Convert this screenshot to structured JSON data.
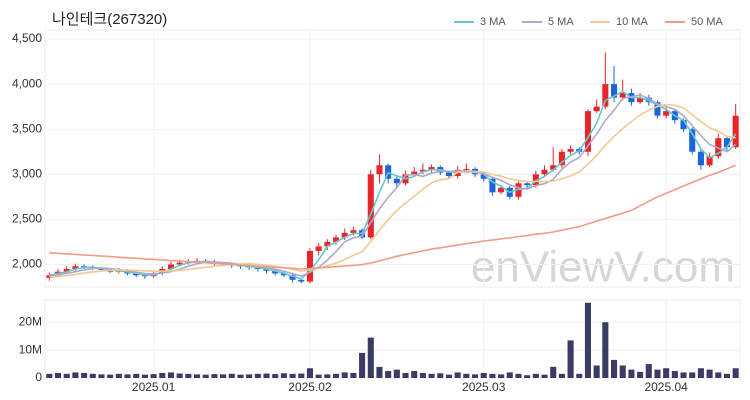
{
  "chart_data": {
    "type": "candlestick",
    "title": "나인테크(267320)",
    "watermark": "enViewV.com",
    "legend": "top-right",
    "grid": true,
    "up_color": "#e8262a",
    "down_color": "#1e64d8",
    "categories": [
      null,
      null,
      null,
      null,
      null,
      null,
      null,
      null,
      null,
      null,
      null,
      null,
      "2025.01",
      null,
      null,
      null,
      null,
      null,
      null,
      null,
      null,
      null,
      null,
      null,
      null,
      null,
      null,
      null,
      null,
      null,
      "2025.02",
      null,
      null,
      null,
      null,
      null,
      null,
      null,
      null,
      null,
      null,
      null,
      null,
      null,
      null,
      null,
      null,
      null,
      null,
      null,
      "2025.03",
      null,
      null,
      null,
      null,
      null,
      null,
      null,
      null,
      null,
      null,
      null,
      null,
      null,
      null,
      null,
      null,
      null,
      null,
      null,
      null,
      "2025.04",
      null,
      null,
      null,
      null,
      null,
      null,
      null,
      null
    ],
    "open": [
      1850,
      1880,
      1920,
      1950,
      1980,
      1970,
      1960,
      1940,
      1920,
      1930,
      1900,
      1880,
      1870,
      1900,
      1950,
      2000,
      2020,
      2030,
      2040,
      2030,
      2010,
      2000,
      1990,
      1980,
      1970,
      1950,
      1930,
      1900,
      1880,
      1830,
      1810,
      2150,
      2200,
      2250,
      2300,
      2350,
      2380,
      2300,
      3000,
      3100,
      2950,
      2900,
      3000,
      3030,
      3050,
      3080,
      3020,
      2980,
      3050,
      3060,
      3000,
      2950,
      2800,
      2850,
      2750,
      2900,
      2880,
      3000,
      3050,
      3100,
      3250,
      3280,
      3250,
      3700,
      3750,
      4000,
      3850,
      3900,
      3800,
      3850,
      3800,
      3650,
      3700,
      3600,
      3500,
      3250,
      3100,
      3200,
      3400,
      3300
    ],
    "high": [
      1910,
      1950,
      1980,
      2010,
      2000,
      1990,
      1970,
      1960,
      1960,
      1950,
      1920,
      1900,
      1930,
      1980,
      2030,
      2050,
      2060,
      2070,
      2060,
      2050,
      2030,
      2020,
      2010,
      2000,
      1990,
      1970,
      1950,
      1920,
      1910,
      1850,
      2180,
      2240,
      2280,
      2330,
      2400,
      2420,
      2400,
      3050,
      3220,
      3120,
      2980,
      3040,
      3080,
      3120,
      3110,
      3100,
      3040,
      3090,
      3120,
      3080,
      3000,
      2970,
      2880,
      2870,
      2930,
      2920,
      3040,
      3100,
      3300,
      3280,
      3320,
      3300,
      3720,
      3830,
      4350,
      4200,
      4050,
      3950,
      3900,
      3880,
      3820,
      3740,
      3720,
      3620,
      3520,
      3270,
      3240,
      3450,
      3420,
      3780
    ],
    "low": [
      1820,
      1860,
      1900,
      1930,
      1950,
      1940,
      1920,
      1900,
      1900,
      1880,
      1860,
      1840,
      1850,
      1880,
      1930,
      1980,
      2000,
      2010,
      2010,
      1990,
      1980,
      1960,
      1950,
      1940,
      1920,
      1900,
      1880,
      1860,
      1800,
      1790,
      1790,
      2100,
      2160,
      2220,
      2270,
      2320,
      2280,
      2280,
      2900,
      2900,
      2850,
      2880,
      2980,
      3000,
      3020,
      2990,
      2950,
      2950,
      3020,
      2970,
      2920,
      2760,
      2780,
      2720,
      2720,
      2850,
      2850,
      2980,
      3030,
      3070,
      3220,
      3220,
      3200,
      3680,
      3720,
      3800,
      3820,
      3760,
      3780,
      3760,
      3620,
      3620,
      3560,
      3470,
      3220,
      3050,
      3080,
      3170,
      3250,
      3280
    ],
    "close": [
      1880,
      1920,
      1950,
      1980,
      1970,
      1960,
      1940,
      1920,
      1930,
      1900,
      1880,
      1870,
      1900,
      1950,
      2000,
      2020,
      2030,
      2040,
      2030,
      2010,
      2000,
      1990,
      1980,
      1970,
      1950,
      1930,
      1900,
      1880,
      1830,
      1810,
      2150,
      2200,
      2250,
      2300,
      2350,
      2380,
      2300,
      3000,
      3100,
      2950,
      2900,
      3000,
      3030,
      3050,
      3080,
      3020,
      2980,
      3050,
      3060,
      3000,
      2950,
      2800,
      2850,
      2750,
      2900,
      2880,
      3000,
      3050,
      3100,
      3250,
      3280,
      3250,
      3700,
      3750,
      4000,
      3850,
      3900,
      3800,
      3850,
      3800,
      3650,
      3700,
      3600,
      3500,
      3250,
      3100,
      3200,
      3400,
      3300,
      3650
    ],
    "series": [
      {
        "name": "3 MA",
        "color": "#62c9cf",
        "values": [
          1880,
          1900,
          1917,
          1950,
          1967,
          1970,
          1957,
          1940,
          1930,
          1917,
          1903,
          1883,
          1883,
          1907,
          1950,
          1990,
          2017,
          2030,
          2033,
          2027,
          2013,
          2000,
          1990,
          1980,
          1967,
          1950,
          1927,
          1903,
          1870,
          1840,
          1930,
          2053,
          2200,
          2250,
          2300,
          2343,
          2343,
          2560,
          2800,
          3017,
          2983,
          2950,
          2977,
          3027,
          3053,
          3050,
          3027,
          3017,
          3030,
          3037,
          3003,
          2917,
          2867,
          2800,
          2833,
          2843,
          2927,
          2977,
          3050,
          3133,
          3210,
          3260,
          3410,
          3567,
          3817,
          3867,
          3917,
          3850,
          3850,
          3817,
          3767,
          3717,
          3650,
          3600,
          3450,
          3283,
          3183,
          3233,
          3300,
          3450
        ]
      },
      {
        "name": "5 MA",
        "color": "#b3a6cb",
        "values": [
          1870,
          1885,
          1900,
          1920,
          1940,
          1956,
          1960,
          1954,
          1944,
          1930,
          1914,
          1900,
          1896,
          1906,
          1920,
          1948,
          1980,
          2008,
          2024,
          2026,
          2022,
          2014,
          2002,
          1990,
          1978,
          1964,
          1946,
          1926,
          1898,
          1870,
          1914,
          1970,
          2048,
          2142,
          2250,
          2296,
          2316,
          2466,
          2616,
          2746,
          2850,
          2990,
          2996,
          2976,
          3012,
          3036,
          3032,
          3036,
          3038,
          3022,
          3008,
          2968,
          2932,
          2882,
          2850,
          2836,
          2876,
          2896,
          2946,
          3056,
          3136,
          3186,
          3316,
          3446,
          3596,
          3710,
          3840,
          3860,
          3880,
          3840,
          3780,
          3750,
          3720,
          3650,
          3540,
          3430,
          3330,
          3290,
          3250,
          3330
        ]
      },
      {
        "name": "10 MA",
        "color": "#f0c993",
        "values": [
          1860,
          1865,
          1875,
          1890,
          1905,
          1918,
          1928,
          1935,
          1940,
          1935,
          1935,
          1930,
          1925,
          1925,
          1930,
          1935,
          1945,
          1957,
          1968,
          1980,
          1990,
          2000,
          2005,
          2008,
          2002,
          1993,
          1980,
          1965,
          1945,
          1925,
          1940,
          1960,
          1985,
          2015,
          2055,
          2100,
          2140,
          2255,
          2380,
          2495,
          2600,
          2680,
          2758,
          2833,
          2906,
          2940,
          2950,
          3025,
          3021,
          3023,
          3028,
          2998,
          2980,
          2950,
          2932,
          2918,
          2920,
          2920,
          2924,
          2949,
          2982,
          3027,
          3112,
          3212,
          3322,
          3418,
          3508,
          3583,
          3658,
          3713,
          3750,
          3775,
          3765,
          3735,
          3660,
          3585,
          3515,
          3475,
          3420,
          3405
        ]
      },
      {
        "name": "50 MA",
        "color": "#f19c84",
        "values": [
          2130,
          2124,
          2118,
          2112,
          2105,
          2099,
          2093,
          2087,
          2081,
          2074,
          2068,
          2062,
          2056,
          2050,
          2043,
          2037,
          2031,
          2025,
          2019,
          2012,
          2006,
          2000,
          1994,
          1988,
          1981,
          1975,
          1969,
          1963,
          1957,
          1950,
          1955,
          1962,
          1968,
          1975,
          1982,
          1990,
          1998,
          2015,
          2040,
          2065,
          2090,
          2110,
          2130,
          2150,
          2170,
          2185,
          2200,
          2215,
          2230,
          2245,
          2260,
          2270,
          2285,
          2295,
          2310,
          2320,
          2335,
          2345,
          2360,
          2380,
          2400,
          2420,
          2450,
          2480,
          2510,
          2540,
          2570,
          2600,
          2650,
          2700,
          2750,
          2790,
          2830,
          2870,
          2910,
          2950,
          2990,
          3020,
          3060,
          3100
        ]
      }
    ],
    "ylim": [
      1750,
      4600
    ],
    "yticks": [
      {
        "value": 2000,
        "label": "2,000"
      },
      {
        "value": 2500,
        "label": "2,500"
      },
      {
        "value": 3000,
        "label": "3,000"
      },
      {
        "value": 3500,
        "label": "3,500"
      },
      {
        "value": 4000,
        "label": "4,000"
      },
      {
        "value": 4500,
        "label": "4,500"
      }
    ],
    "volume": {
      "color": "#3b3b66",
      "ylim": [
        0,
        28000000
      ],
      "yticks": [
        0,
        {
          "value": 10000000,
          "label": "10M"
        },
        {
          "value": 20000000,
          "label": "20M"
        }
      ],
      "values": [
        1500000,
        1800000,
        1500000,
        2000000,
        1800000,
        1500000,
        1300000,
        1200000,
        1500000,
        1300000,
        1500000,
        1200000,
        1400000,
        1800000,
        2000000,
        1600000,
        1500000,
        1300000,
        1200000,
        1400000,
        1300000,
        1500000,
        1200000,
        1300000,
        1500000,
        1600000,
        1400000,
        1700000,
        1500000,
        1600000,
        3500000,
        1200000,
        1300000,
        1500000,
        2000000,
        1800000,
        9000000,
        14500000,
        4000000,
        2500000,
        3000000,
        1800000,
        2500000,
        1800000,
        1500000,
        1700000,
        1200000,
        2000000,
        1500000,
        1300000,
        1800000,
        1500000,
        1300000,
        2000000,
        1500000,
        1000000,
        1500000,
        1200000,
        4000000,
        1500000,
        13500000,
        1500000,
        27000000,
        4500000,
        20000000,
        6500000,
        4500000,
        3000000,
        2200000,
        5000000,
        3000000,
        3500000,
        2500000,
        2000000,
        2000000,
        3500000,
        3000000,
        2000000,
        1500000,
        3500000
      ]
    }
  }
}
